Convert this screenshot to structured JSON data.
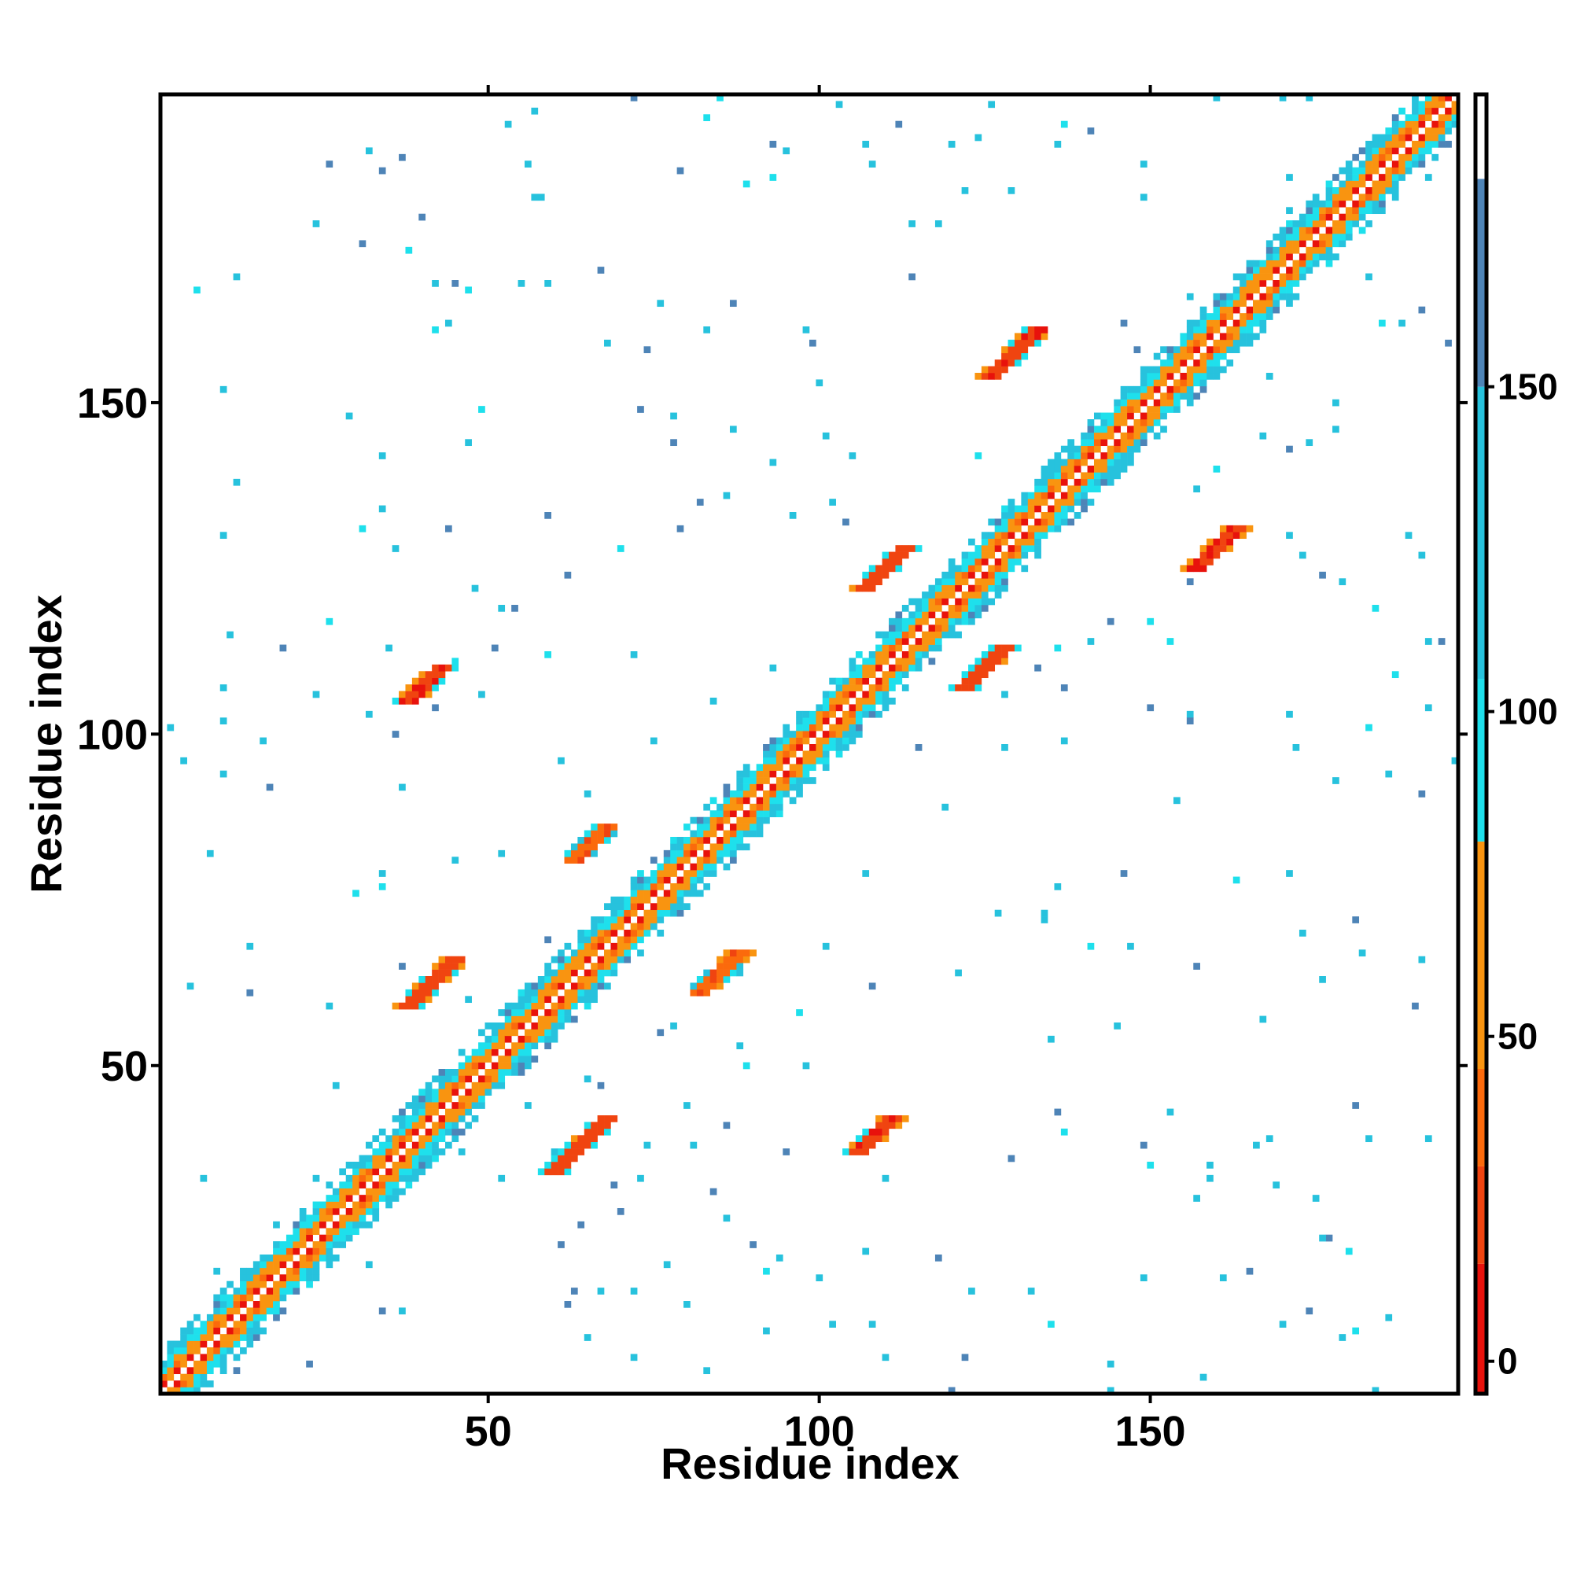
{
  "chart_data": {
    "type": "heatmap",
    "title": "",
    "xlabel": "Residue index",
    "ylabel": "Residue index",
    "xlim": [
      1,
      196
    ],
    "ylim": [
      1,
      196
    ],
    "xticks": [
      50,
      100,
      150
    ],
    "yticks": [
      50,
      100,
      150
    ],
    "grid": false,
    "colorbar": {
      "position": "right",
      "ticks": [
        0,
        50,
        100,
        150
      ],
      "range": [
        -5,
        195
      ],
      "bands": [
        {
          "from": -5,
          "to": 15,
          "color": "#e8120c"
        },
        {
          "from": 15,
          "to": 30,
          "color": "#f04410"
        },
        {
          "from": 30,
          "to": 45,
          "color": "#fb6a0c"
        },
        {
          "from": 45,
          "to": 80,
          "color": "#f99410"
        },
        {
          "from": 80,
          "to": 105,
          "color": "#1ee0ec"
        },
        {
          "from": 105,
          "to": 150,
          "color": "#27c2dd"
        },
        {
          "from": 150,
          "to": 182,
          "color": "#4e84b7"
        },
        {
          "from": 182,
          "to": 195,
          "color": "#ffffff"
        }
      ]
    },
    "values_note_omitted": false,
    "contact_regions": [
      {
        "kind": "diagonal",
        "x_start": 1,
        "x_end": 196,
        "width": 6
      },
      {
        "kind": "parallel",
        "x_start": 38,
        "x_end": 45,
        "y_start": 59,
        "y_end": 66,
        "level": 15
      },
      {
        "kind": "parallel",
        "x_start": 60,
        "x_end": 68,
        "y_start": 34,
        "y_end": 42,
        "level": 15
      },
      {
        "kind": "parallel",
        "x_start": 63,
        "x_end": 68,
        "y_start": 81,
        "y_end": 86,
        "level": 25
      },
      {
        "kind": "parallel",
        "x_start": 82,
        "x_end": 88,
        "y_start": 61,
        "y_end": 67,
        "level": 25
      },
      {
        "kind": "parallel",
        "x_start": 38,
        "x_end": 43,
        "y_start": 105,
        "y_end": 110,
        "level": 10
      },
      {
        "kind": "parallel",
        "x_start": 106,
        "x_end": 111,
        "y_start": 37,
        "y_end": 42,
        "level": 10
      },
      {
        "kind": "parallel",
        "x_start": 107,
        "x_end": 113,
        "y_start": 122,
        "y_end": 128,
        "level": 15
      },
      {
        "kind": "parallel",
        "x_start": 122,
        "x_end": 128,
        "y_start": 107,
        "y_end": 113,
        "level": 15
      },
      {
        "kind": "parallel",
        "x_start": 126,
        "x_end": 133,
        "y_start": 154,
        "y_end": 161,
        "level": 10
      },
      {
        "kind": "parallel",
        "x_start": 157,
        "x_end": 163,
        "y_start": 125,
        "y_end": 131,
        "level": 10
      }
    ]
  }
}
